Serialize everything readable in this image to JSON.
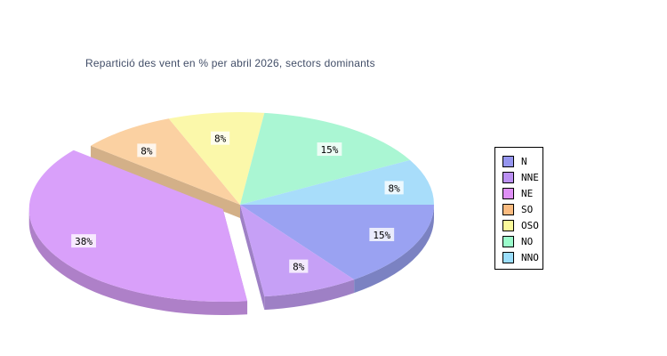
{
  "chart_data": {
    "type": "pie",
    "variant": "3d-exploded-pie",
    "title": "Repartició des vent en % per abril 2026, sectors dominants",
    "title_color": "#424e68",
    "unit": "%",
    "total": 100,
    "start_angle_deg": 0,
    "direction": "clockwise",
    "legend_position": "right",
    "exploded_label": "NE",
    "series": [
      {
        "label": "N",
        "value": 15,
        "display": "15%",
        "color": "#9aa2f2",
        "legend_color": "#9595ef"
      },
      {
        "label": "NNE",
        "value": 8,
        "display": "8%",
        "color": "#c6a0f6",
        "legend_color": "#bb90f2"
      },
      {
        "label": "NE",
        "value": 38,
        "display": "38%",
        "color": "#d9a0fa",
        "legend_color": "#df90f6"
      },
      {
        "label": "SO",
        "value": 8,
        "display": "8%",
        "color": "#fbd1a2",
        "legend_color": "#fabb80"
      },
      {
        "label": "OSO",
        "value": 8,
        "display": "8%",
        "color": "#fbf8aa",
        "legend_color": "#fbfa9b"
      },
      {
        "label": "NO",
        "value": 15,
        "display": "15%",
        "color": "#aaf6d3",
        "legend_color": "#9bfbcb"
      },
      {
        "label": "NNO",
        "value": 8,
        "display": "8%",
        "color": "#a8ddfa",
        "legend_color": "#9bdefb"
      }
    ],
    "slice_label_background": "#ffffff",
    "background": "#ffffff"
  }
}
